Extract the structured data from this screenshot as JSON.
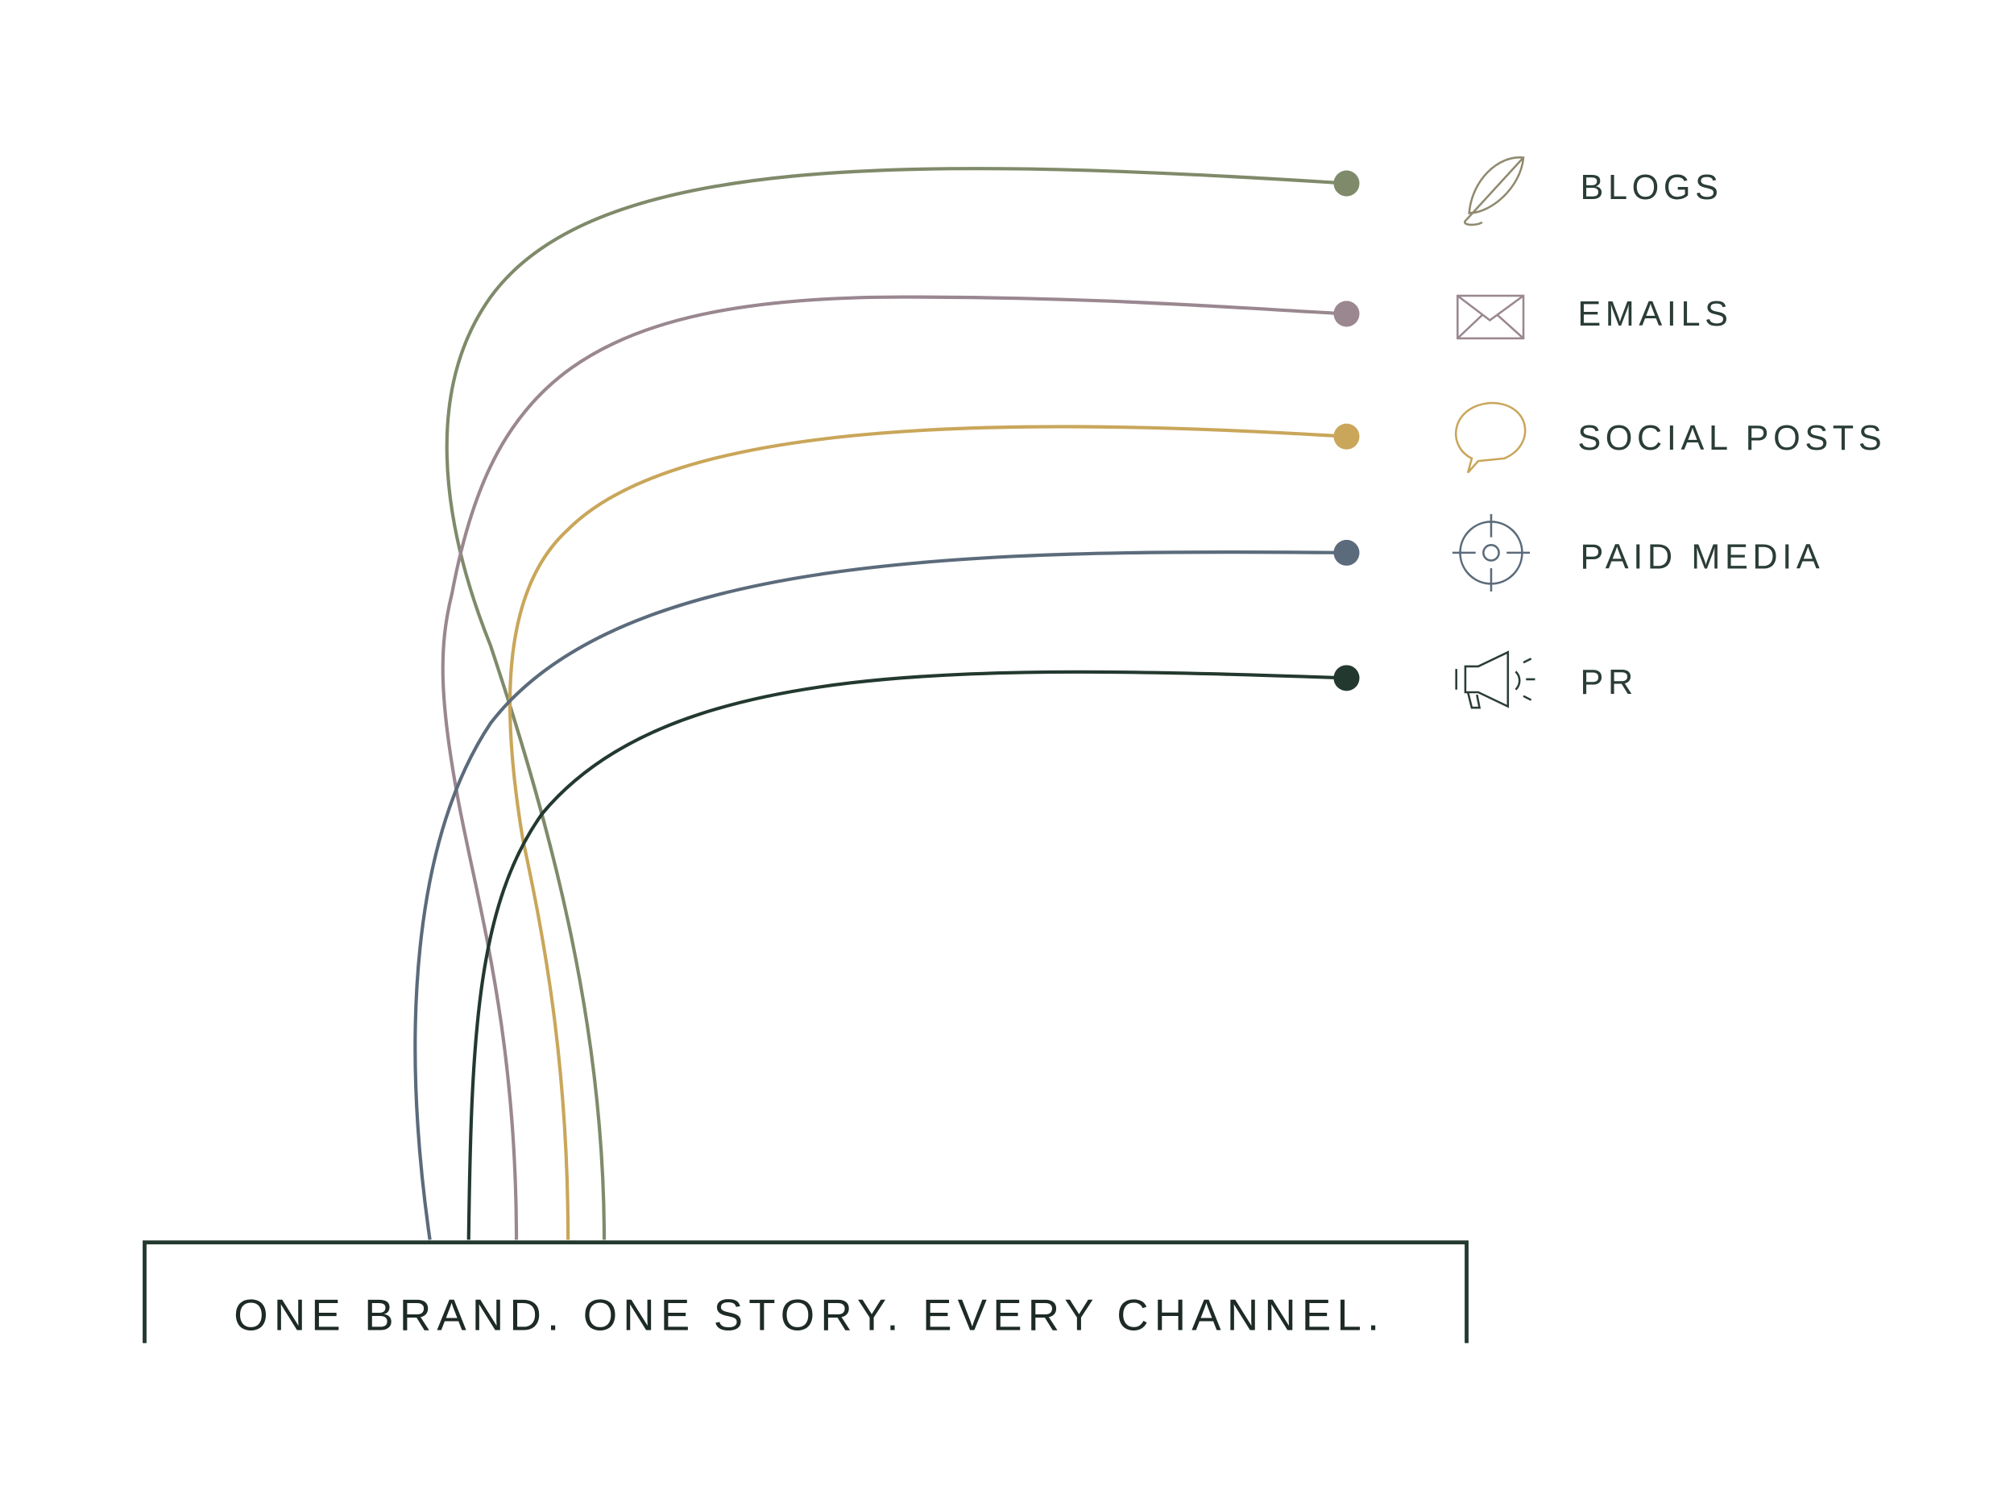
{
  "channels": [
    {
      "label": "BLOGS",
      "color": "#7f8a6a"
    },
    {
      "label": "EMAILS",
      "color": "#9a8790"
    },
    {
      "label": "SOCIAL POSTS",
      "color": "#c9a65a"
    },
    {
      "label": "PAID MEDIA",
      "color": "#5b6b7b"
    },
    {
      "label": "PR",
      "color": "#23392f"
    }
  ],
  "tagline": "ONE BRAND. ONE STORY. EVERY CHANNEL."
}
